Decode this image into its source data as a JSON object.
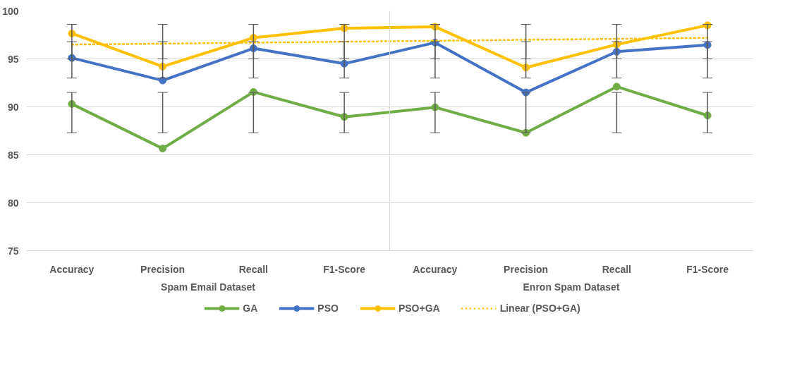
{
  "chart_data": {
    "type": "line",
    "categories": [
      "Accuracy",
      "Precision",
      "Recall",
      "F1-Score",
      "Accuracy",
      "Precision",
      "Recall",
      "F1-Score"
    ],
    "annotations": [
      "Spam Email Dataset",
      "Enron Spam Dataset"
    ],
    "series": [
      {
        "name": "GA",
        "color": "#70ad47",
        "values": [
          90.3,
          85.65,
          91.55,
          88.95,
          89.95,
          87.3,
          92.1,
          89.1
        ],
        "errors": [
          [
            87.3,
            91.5
          ],
          [
            87.3,
            91.5
          ],
          [
            87.3,
            91.5
          ],
          [
            87.3,
            91.5
          ],
          [
            87.3,
            91.5
          ],
          [
            87.3,
            91.5
          ],
          [
            87.3,
            91.5
          ],
          [
            87.3,
            91.5
          ]
        ]
      },
      {
        "name": "PSO",
        "color": "#4472c4",
        "values": [
          95.1,
          92.75,
          96.1,
          94.5,
          96.7,
          91.5,
          95.75,
          96.45
        ],
        "errors": [
          [
            93.0,
            96.8
          ],
          [
            93.0,
            96.8
          ],
          [
            93.0,
            96.8
          ],
          [
            93.0,
            96.8
          ],
          [
            93.0,
            96.8
          ],
          [
            93.0,
            96.8
          ],
          [
            93.0,
            96.8
          ],
          [
            93.0,
            96.8
          ]
        ]
      },
      {
        "name": "PSO+GA",
        "color": "#ffc000",
        "values": [
          97.65,
          94.2,
          97.2,
          98.2,
          98.35,
          94.1,
          96.5,
          98.5
        ],
        "errors": [
          [
            95.0,
            98.6
          ],
          [
            95.0,
            98.6
          ],
          [
            95.0,
            98.6
          ],
          [
            95.0,
            98.6
          ],
          [
            95.0,
            98.6
          ],
          [
            95.0,
            98.6
          ],
          [
            95.0,
            98.6
          ],
          [
            95.0,
            98.6
          ]
        ]
      },
      {
        "name": "Linear (PSO+GA)",
        "color": "#ffc000",
        "type": "line",
        "marker": "none",
        "line_style": "dotted",
        "values": [
          96.49,
          96.59,
          96.69,
          96.79,
          96.89,
          96.99,
          97.09,
          97.19
        ]
      }
    ],
    "ylim": [
      75,
      100
    ],
    "yticks": [
      75,
      80,
      85,
      90,
      95,
      100
    ],
    "grid": "y",
    "legend": "bottom",
    "marker": "circle",
    "line_style": "solid"
  }
}
